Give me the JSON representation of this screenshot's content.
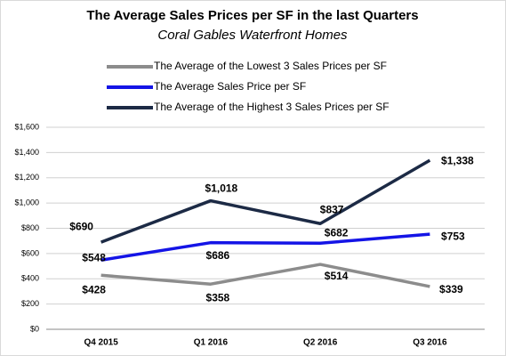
{
  "chart_data": {
    "type": "line",
    "title": "The Average Sales Prices per SF in the last Quarters",
    "subtitle": "Coral Gables Waterfront Homes",
    "categories": [
      "Q4 2015",
      "Q1 2016",
      "Q2 2016",
      "Q3 2016"
    ],
    "series": [
      {
        "name": "The Average of the Lowest 3 Sales Prices per SF",
        "color": "#8c8c8c",
        "values": [
          428,
          358,
          514,
          339
        ],
        "value_labels": [
          "$428",
          "$358",
          "$514",
          "$339"
        ]
      },
      {
        "name": "The Average Sales Price per SF",
        "color": "#1414e6",
        "values": [
          548,
          686,
          682,
          753
        ],
        "value_labels": [
          "$548",
          "$686",
          "$682",
          "$753"
        ]
      },
      {
        "name": "The Average of the Highest 3 Sales Prices per SF",
        "color": "#1c2a45",
        "values": [
          690,
          1018,
          837,
          1338
        ],
        "value_labels": [
          "$690",
          "$1,018",
          "$837",
          "$1,338"
        ]
      }
    ],
    "ylim": [
      0,
      1600
    ],
    "yticks": [
      {
        "value": 0,
        "label": "$0"
      },
      {
        "value": 200,
        "label": "$200"
      },
      {
        "value": 400,
        "label": "$400"
      },
      {
        "value": 600,
        "label": "$600"
      },
      {
        "value": 800,
        "label": "$800"
      },
      {
        "value": 1000,
        "label": "$1,000"
      },
      {
        "value": 1200,
        "label": "$1,200"
      },
      {
        "value": 1400,
        "label": "$1,400"
      },
      {
        "value": 1600,
        "label": "$1,600"
      }
    ],
    "grid": true
  }
}
